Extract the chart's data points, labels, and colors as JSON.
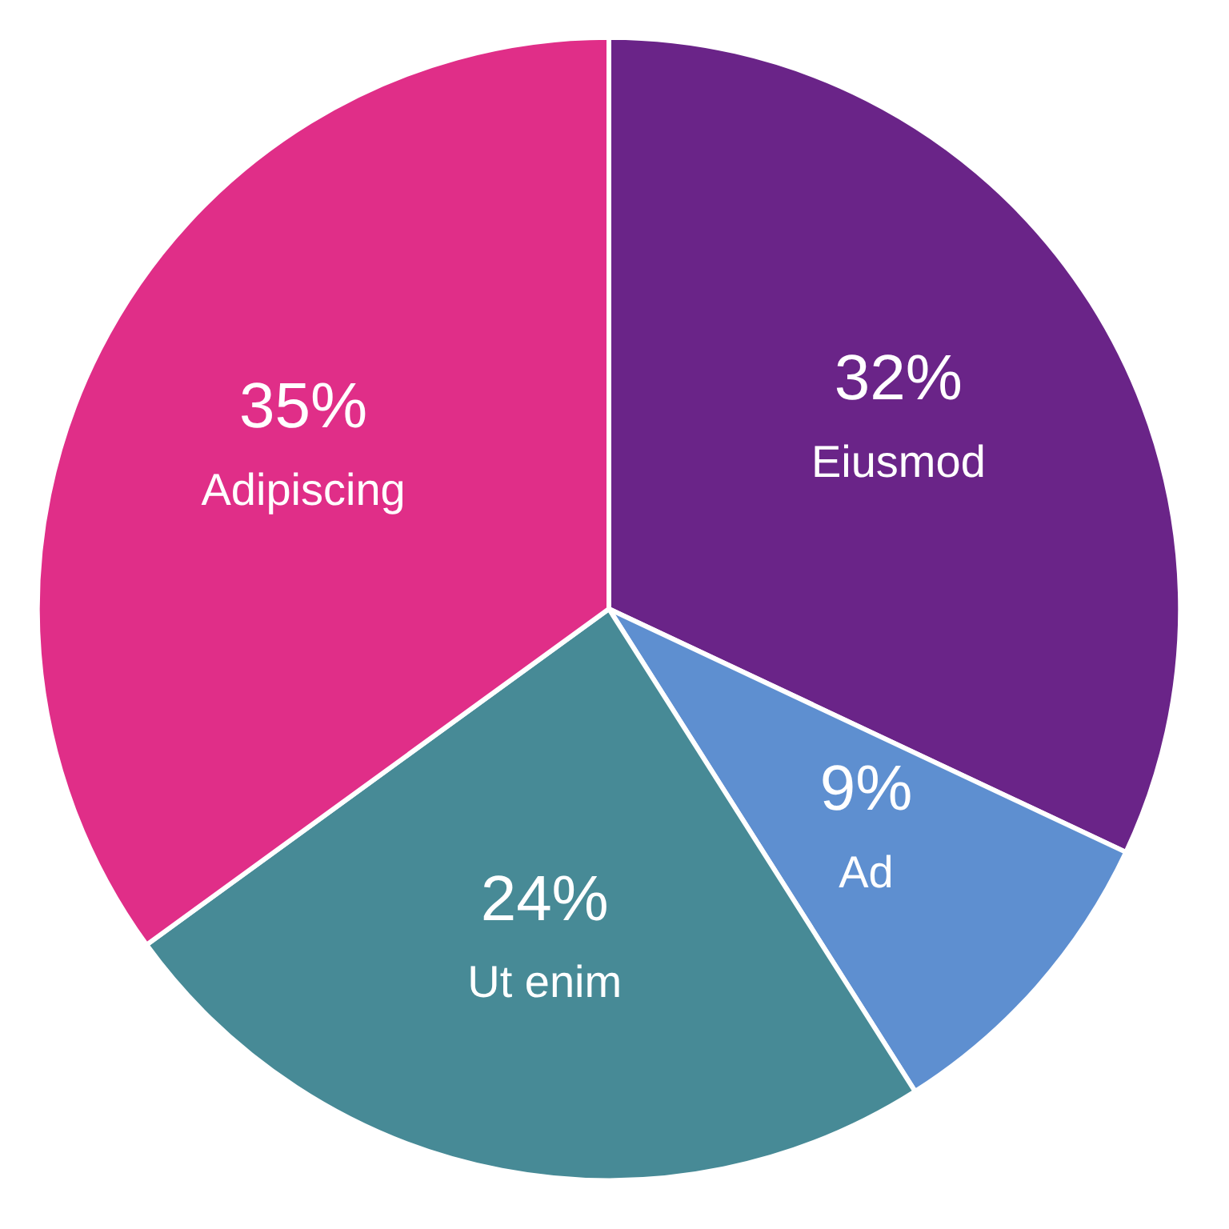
{
  "chart_data": {
    "type": "pie",
    "categories": [
      "Eiusmod",
      "Ad",
      "Ut enim",
      "Adipiscing"
    ],
    "values": [
      32,
      9,
      24,
      35
    ],
    "value_labels": [
      "32%",
      "9%",
      "24%",
      "35%"
    ],
    "colors": [
      "#6a2488",
      "#5e8fd0",
      "#478a96",
      "#e02e88"
    ]
  }
}
